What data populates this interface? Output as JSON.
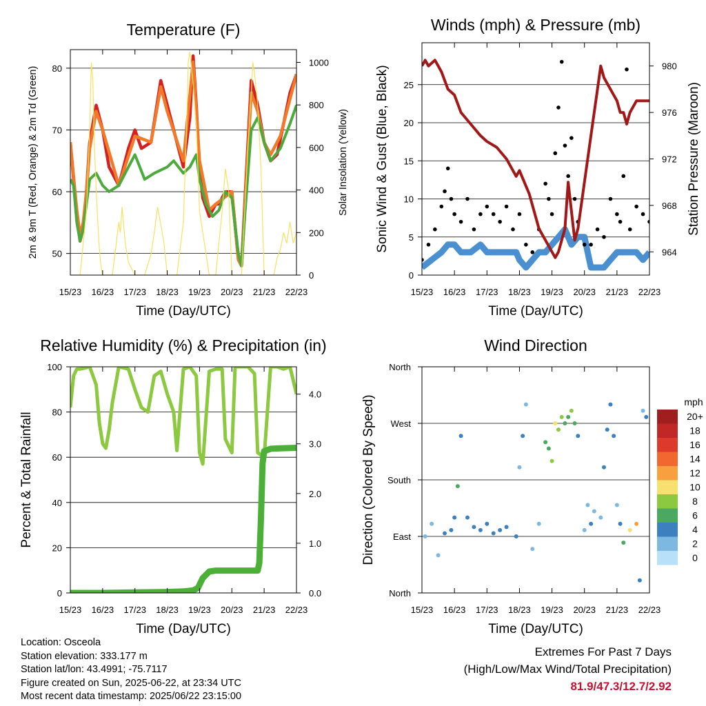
{
  "colors": {
    "temp_2m": "#d42020",
    "temp_9m": "#f07a2a",
    "dewpoint": "#4caa3c",
    "solar": "#f8e060",
    "wind": "#4a90d0",
    "gust": "#000000",
    "pressure": "#a01818",
    "rh": "#8cc840",
    "precip": "#4cb038",
    "extremes": "#c8102e"
  },
  "station": {
    "location": "Location: Osceola",
    "elevation": "Station elevation: 333.177 m",
    "latlon": "Station lat/lon: 43.4991; -75.7117",
    "created": "Figure created on Sun, 2025-06-22, at 23:34 UTC",
    "latest": "Most recent data timestamp: 2025/06/22 23:15:00"
  },
  "extremes": {
    "title": "Extremes For Past 7 Days",
    "subtitle": "(High/Low/Max Wind/Total Precipitation)",
    "values": "81.9/47.3/12.7/2.92"
  },
  "chart_data": [
    {
      "type": "line",
      "title": "Temperature (F)",
      "xlabel": "Time (Day/UTC)",
      "ylabel": "2m & 9m T (Red, Orange) & 2m Td (Green)",
      "y2label": "Solar Insolation (Yellow)",
      "x_ticks": [
        "15/23",
        "16/23",
        "17/23",
        "18/23",
        "19/23",
        "20/23",
        "21/23",
        "22/23"
      ],
      "xlim": [
        0,
        7
      ],
      "ylim": [
        46.5,
        83
      ],
      "y_ticks": [
        50,
        60,
        70,
        80
      ],
      "y2lim": [
        0,
        1060
      ],
      "y2_ticks": [
        0,
        200,
        400,
        600,
        800,
        1000
      ],
      "grid": "horizontal",
      "series": [
        {
          "axis": "left",
          "color_key": "temp_2m",
          "x": [
            0,
            0.1,
            0.2,
            0.3,
            0.4,
            0.5,
            0.6,
            0.8,
            1,
            1.2,
            1.5,
            1.8,
            2,
            2.2,
            2.5,
            2.8,
            3,
            3.3,
            3.5,
            3.7,
            3.8,
            3.9,
            4,
            4.1,
            4.3,
            4.5,
            4.6,
            4.8,
            5,
            5.2,
            5.3,
            5.4,
            5.6,
            5.8,
            6,
            6.2,
            6.4,
            6.6,
            6.8,
            7
          ],
          "y": [
            68,
            62,
            56,
            52,
            54,
            60,
            68,
            74,
            70,
            64,
            61,
            67,
            70,
            67,
            68,
            78,
            74,
            68,
            64,
            72,
            82,
            74,
            64,
            59,
            56,
            58,
            58,
            60,
            60,
            49,
            48,
            58,
            78,
            74,
            68,
            65,
            66,
            71,
            76,
            79
          ]
        },
        {
          "axis": "left",
          "color_key": "temp_9m",
          "x": [
            0,
            0.2,
            0.3,
            0.4,
            0.5,
            0.6,
            0.8,
            1,
            1.5,
            2,
            2.5,
            2.8,
            3,
            3.5,
            3.8,
            4,
            4.3,
            4.5,
            5,
            5.2,
            5.3,
            5.4,
            5.6,
            5.8,
            6,
            6.2,
            6.5,
            6.8,
            7
          ],
          "y": [
            68,
            57,
            53,
            55,
            60,
            67,
            73,
            70,
            61,
            69,
            68,
            77,
            73,
            65,
            81,
            65,
            57,
            58,
            60,
            49,
            48,
            57,
            76,
            73,
            68,
            66,
            69,
            75,
            79
          ]
        },
        {
          "axis": "left",
          "color_key": "dewpoint",
          "x": [
            0,
            0.1,
            0.2,
            0.3,
            0.4,
            0.5,
            0.6,
            0.8,
            1,
            1.2,
            1.5,
            1.8,
            2,
            2.3,
            2.6,
            3,
            3.2,
            3.5,
            3.7,
            3.9,
            4,
            4.2,
            4.4,
            4.6,
            4.8,
            5,
            5.2,
            5.3,
            5.4,
            5.6,
            5.8,
            6,
            6.2,
            6.5,
            6.8,
            7
          ],
          "y": [
            62,
            61,
            55,
            52,
            54,
            58,
            62,
            63,
            61,
            60,
            61,
            64,
            66,
            62,
            63,
            64,
            65,
            63,
            64,
            66,
            62,
            58,
            56,
            57,
            60,
            59,
            50,
            48,
            56,
            70,
            72,
            68,
            65,
            67,
            71,
            74
          ]
        },
        {
          "axis": "right",
          "color_key": "solar",
          "x": [
            0,
            0.3,
            0.4,
            0.5,
            0.55,
            0.6,
            0.65,
            0.7,
            0.75,
            0.8,
            0.85,
            0.9,
            0.95,
            1,
            1.3,
            1.4,
            1.5,
            1.55,
            1.6,
            1.7,
            1.8,
            2,
            2.3,
            2.5,
            2.6,
            2.7,
            2.8,
            2.9,
            3,
            3.3,
            3.5,
            3.6,
            3.65,
            3.7,
            3.8,
            3.9,
            4,
            4.3,
            4.5,
            4.6,
            4.7,
            4.8,
            4.9,
            5,
            5.3,
            5.4,
            5.5,
            5.6,
            5.65,
            5.7,
            5.8,
            5.9,
            6,
            6.3,
            6.4,
            6.5,
            6.6,
            6.7,
            6.8,
            6.9,
            7
          ],
          "y": [
            0,
            0,
            150,
            300,
            500,
            700,
            1000,
            900,
            600,
            400,
            250,
            120,
            40,
            0,
            0,
            120,
            250,
            200,
            320,
            150,
            60,
            0,
            0,
            100,
            200,
            320,
            240,
            150,
            0,
            0,
            250,
            700,
            1000,
            1050,
            900,
            700,
            300,
            0,
            0,
            150,
            300,
            500,
            400,
            0,
            0,
            300,
            600,
            850,
            1000,
            950,
            800,
            500,
            0,
            0,
            80,
            120,
            200,
            150,
            250,
            150,
            200
          ]
        }
      ]
    },
    {
      "type": "scatter",
      "title": "Winds (mph) & Pressure (mb)",
      "xlabel": "Time (Day/UTC)",
      "ylabel": "Sonic Wind & Gust (Blue, Black)",
      "y2label": "Station Pressure (Maroon)",
      "x_ticks": [
        "15/23",
        "16/23",
        "17/23",
        "18/23",
        "19/23",
        "20/23",
        "21/23",
        "22/23"
      ],
      "xlim": [
        0,
        7
      ],
      "ylim": [
        0,
        30.5
      ],
      "y_ticks": [
        0,
        5,
        10,
        15,
        20,
        25
      ],
      "y2lim": [
        962,
        982
      ],
      "y2_ticks": [
        964,
        968,
        972,
        976,
        980
      ],
      "grid": "horizontal",
      "series": [
        {
          "axis": "left",
          "color_key": "wind",
          "style": "band",
          "x": [
            0,
            0.3,
            0.6,
            0.8,
            1,
            1.2,
            1.5,
            1.8,
            2,
            2.3,
            2.6,
            2.9,
            3,
            3.2,
            3.4,
            3.6,
            3.8,
            4,
            4.2,
            4.4,
            4.6,
            4.8,
            5,
            5.2,
            5.4,
            5.6,
            5.8,
            6,
            6.2,
            6.4,
            6.6,
            6.8,
            7
          ],
          "y": [
            1,
            2,
            3,
            4,
            4,
            3,
            3,
            4,
            3,
            3,
            3,
            3,
            2,
            1,
            2,
            3,
            3,
            4,
            5,
            6,
            4,
            5,
            5,
            1,
            1,
            1,
            2,
            3,
            3,
            3,
            3,
            2,
            3
          ]
        },
        {
          "axis": "left",
          "color_key": "gust",
          "style": "points",
          "x": [
            0,
            0.2,
            0.4,
            0.6,
            0.7,
            0.8,
            0.9,
            1,
            1.2,
            1.4,
            1.6,
            1.8,
            2,
            2.2,
            2.4,
            2.6,
            2.8,
            3,
            3.2,
            3.4,
            3.6,
            3.8,
            3.9,
            4,
            4.1,
            4.2,
            4.3,
            4.4,
            4.5,
            4.6,
            4.7,
            4.8,
            5,
            5.2,
            5.4,
            5.6,
            5.8,
            6,
            6.1,
            6.2,
            6.3,
            6.4,
            6.6,
            6.8,
            7
          ],
          "y": [
            2,
            4,
            6,
            9,
            11,
            14,
            10,
            8,
            7,
            10,
            6,
            8,
            9,
            8,
            7,
            9,
            6,
            8,
            4,
            3,
            6,
            12,
            10,
            8,
            16,
            22,
            28,
            17,
            13,
            18,
            10,
            7,
            4,
            4,
            6,
            5,
            10,
            8,
            7,
            13,
            27,
            6,
            9,
            8,
            7
          ]
        },
        {
          "axis": "right",
          "color_key": "pressure",
          "style": "line",
          "x": [
            0,
            0.1,
            0.2,
            0.4,
            0.6,
            0.8,
            1,
            1.2,
            1.5,
            1.8,
            2,
            2.3,
            2.6,
            2.9,
            3,
            3.3,
            3.6,
            3.8,
            4,
            4.1,
            4.2,
            4.4,
            4.5,
            4.7,
            4.8,
            5,
            5.2,
            5.4,
            5.5,
            5.6,
            5.8,
            6,
            6.1,
            6.2,
            6.3,
            6.4,
            6.6,
            6.8,
            7
          ],
          "y": [
            980,
            980.5,
            980,
            980.5,
            979.5,
            978,
            977.5,
            976,
            975,
            974,
            973.5,
            973,
            972,
            970.5,
            971,
            969,
            966,
            965,
            964,
            963.5,
            964,
            966,
            970,
            965,
            966,
            970,
            974,
            978,
            980,
            979,
            978,
            977,
            976,
            976,
            975,
            976,
            977,
            977,
            977
          ]
        }
      ]
    },
    {
      "type": "line",
      "title": "Relative Humidity (%) & Precipitation (in)",
      "xlabel": "Time (Day/UTC)",
      "ylabel": "Percent & Total Rainfall",
      "x_ticks": [
        "15/23",
        "16/23",
        "17/23",
        "18/23",
        "19/23",
        "20/23",
        "21/23",
        "22/23"
      ],
      "xlim": [
        0,
        7
      ],
      "ylim": [
        0,
        100
      ],
      "y_ticks": [
        0,
        20,
        40,
        60,
        80,
        100
      ],
      "y2lim": [
        0,
        4.55
      ],
      "y2_ticks": [
        "0.0",
        "1.0",
        "2.0",
        "3.0",
        "4.0"
      ],
      "grid": "horizontal",
      "series": [
        {
          "axis": "left",
          "color_key": "rh",
          "x": [
            0,
            0.1,
            0.2,
            0.3,
            0.6,
            0.8,
            0.9,
            1,
            1.1,
            1.2,
            1.3,
            1.5,
            1.8,
            2,
            2.2,
            2.4,
            2.6,
            2.8,
            3,
            3.2,
            3.3,
            3.5,
            3.7,
            3.9,
            4,
            4.1,
            4.3,
            4.5,
            4.7,
            4.8,
            5,
            5.1,
            5.3,
            5.5,
            5.7,
            5.8,
            6,
            6.2,
            6.4,
            6.6,
            6.8,
            7
          ],
          "y": [
            82,
            96,
            99,
            99,
            100,
            92,
            75,
            66,
            64,
            72,
            84,
            100,
            99,
            90,
            82,
            80,
            96,
            98,
            88,
            80,
            63,
            99,
            100,
            96,
            62,
            57,
            98,
            99,
            99,
            68,
            62,
            100,
            100,
            100,
            97,
            62,
            60,
            100,
            100,
            99,
            100,
            88
          ]
        },
        {
          "axis": "right",
          "color_key": "precip",
          "x": [
            0,
            1,
            2,
            3,
            3.5,
            3.8,
            3.95,
            4.1,
            4.3,
            4.5,
            5,
            5.5,
            5.8,
            5.85,
            5.9,
            5.95,
            6,
            6.2,
            6.5,
            7
          ],
          "y": [
            0,
            0,
            0.01,
            0.02,
            0.03,
            0.05,
            0.1,
            0.3,
            0.43,
            0.45,
            0.45,
            0.45,
            0.45,
            0.6,
            1.5,
            2.6,
            2.85,
            2.9,
            2.91,
            2.92
          ]
        }
      ]
    },
    {
      "type": "scatter",
      "title": "Wind Direction",
      "xlabel": "Time (Day/UTC)",
      "ylabel": "Direction (Colored By Speed)",
      "x_ticks": [
        "15/23",
        "16/23",
        "17/23",
        "18/23",
        "19/23",
        "20/23",
        "21/23",
        "22/23"
      ],
      "xlim": [
        0,
        7
      ],
      "ylim": [
        0,
        360
      ],
      "y_tick_labels": [
        "North",
        "East",
        "South",
        "West",
        "North"
      ],
      "grid": "horizontal",
      "legend": {
        "title": "mph",
        "placement": "right",
        "labels": [
          "20+",
          "18",
          "16",
          "14",
          "12",
          "10",
          "8",
          "6",
          "4",
          "2",
          "0"
        ],
        "colors": [
          "#a01e1e",
          "#c02828",
          "#de3a2c",
          "#f06830",
          "#f8a040",
          "#f8e070",
          "#8cc840",
          "#4aa860",
          "#3c80c0",
          "#7cb8e0",
          "#b8e0f8"
        ]
      },
      "series": [
        {
          "name": "direction",
          "x": [
            0.1,
            0.3,
            0.5,
            0.7,
            0.9,
            1.0,
            1.1,
            1.2,
            1.4,
            1.6,
            1.8,
            2.0,
            2.2,
            2.4,
            2.6,
            2.9,
            3.0,
            3.1,
            3.2,
            3.4,
            3.6,
            3.8,
            3.9,
            4.0,
            4.1,
            4.2,
            4.3,
            4.4,
            4.5,
            4.6,
            4.7,
            4.8,
            5.0,
            5.1,
            5.2,
            5.3,
            5.5,
            5.6,
            5.7,
            5.8,
            5.9,
            6.0,
            6.1,
            6.2,
            6.4,
            6.6,
            6.7,
            6.8,
            6.9
          ],
          "y": [
            90,
            110,
            60,
            95,
            100,
            120,
            170,
            250,
            120,
            105,
            100,
            110,
            95,
            100,
            105,
            90,
            200,
            250,
            300,
            70,
            110,
            240,
            230,
            210,
            270,
            260,
            280,
            270,
            280,
            290,
            270,
            250,
            100,
            140,
            110,
            130,
            120,
            200,
            260,
            300,
            250,
            140,
            110,
            80,
            100,
            110,
            20,
            290,
            280
          ],
          "speeds": [
            1,
            2,
            1,
            3,
            4,
            4,
            5,
            3,
            3,
            3,
            4,
            4,
            3,
            3,
            3,
            3,
            2,
            3,
            2,
            1,
            2,
            5,
            6,
            7,
            9,
            8,
            7,
            6,
            5,
            7,
            5,
            4,
            1,
            2,
            3,
            2,
            2,
            3,
            4,
            3,
            4,
            2,
            4,
            5,
            9,
            11,
            4,
            2,
            3
          ]
        }
      ]
    }
  ]
}
